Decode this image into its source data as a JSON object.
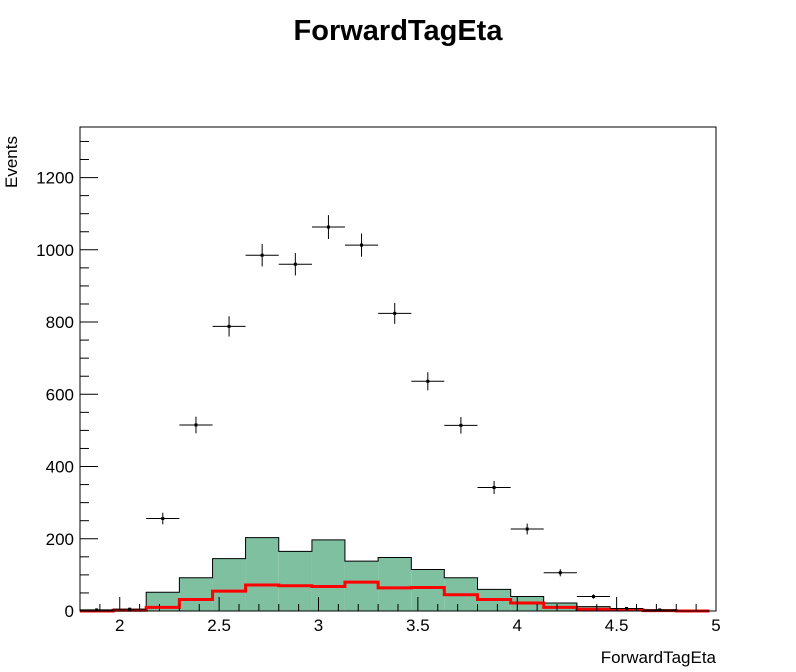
{
  "chart_data": {
    "type": "bar",
    "title": "ForwardTagEta",
    "xlabel": "ForwardTagEta",
    "ylabel": "Events",
    "xlim": [
      1.8,
      5.0
    ],
    "ylim": [
      0,
      1340
    ],
    "bin_edges": [
      1.8,
      1.967,
      2.133,
      2.3,
      2.467,
      2.633,
      2.8,
      2.967,
      3.133,
      3.3,
      3.467,
      3.633,
      3.8,
      3.967,
      4.133,
      4.3,
      4.467,
      4.633,
      4.8,
      4.967
    ],
    "x_ticks": [
      2,
      2.5,
      3,
      3.5,
      4,
      4.5,
      5
    ],
    "x_tick_labels": [
      "2",
      "2.5",
      "3",
      "3.5",
      "4",
      "4.5",
      "5"
    ],
    "y_ticks": [
      0,
      200,
      400,
      600,
      800,
      1000,
      1200
    ],
    "y_tick_labels": [
      "0",
      "200",
      "400",
      "600",
      "800",
      "1000",
      "1200"
    ],
    "series": [
      {
        "kind": "filled-hist",
        "color": "#7fc0a0",
        "values": [
          2,
          5,
          52,
          92,
          145,
          203,
          165,
          197,
          138,
          148,
          115,
          92,
          60,
          40,
          22,
          12,
          5,
          2,
          0
        ]
      },
      {
        "kind": "line-hist",
        "color": "#ff0000",
        "values": [
          0,
          2,
          10,
          32,
          55,
          72,
          70,
          68,
          80,
          64,
          65,
          45,
          32,
          22,
          10,
          5,
          3,
          1,
          0
        ]
      },
      {
        "kind": "points",
        "color": "#000000",
        "values": [
          3,
          5,
          256,
          515,
          788,
          985,
          960,
          1063,
          1013,
          824,
          636,
          514,
          342,
          227,
          106,
          40,
          7,
          3,
          0
        ],
        "errors": [
          2,
          2,
          16,
          23,
          28,
          31,
          31,
          33,
          32,
          29,
          25,
          23,
          18,
          15,
          10,
          6,
          3,
          2,
          0
        ]
      }
    ]
  }
}
